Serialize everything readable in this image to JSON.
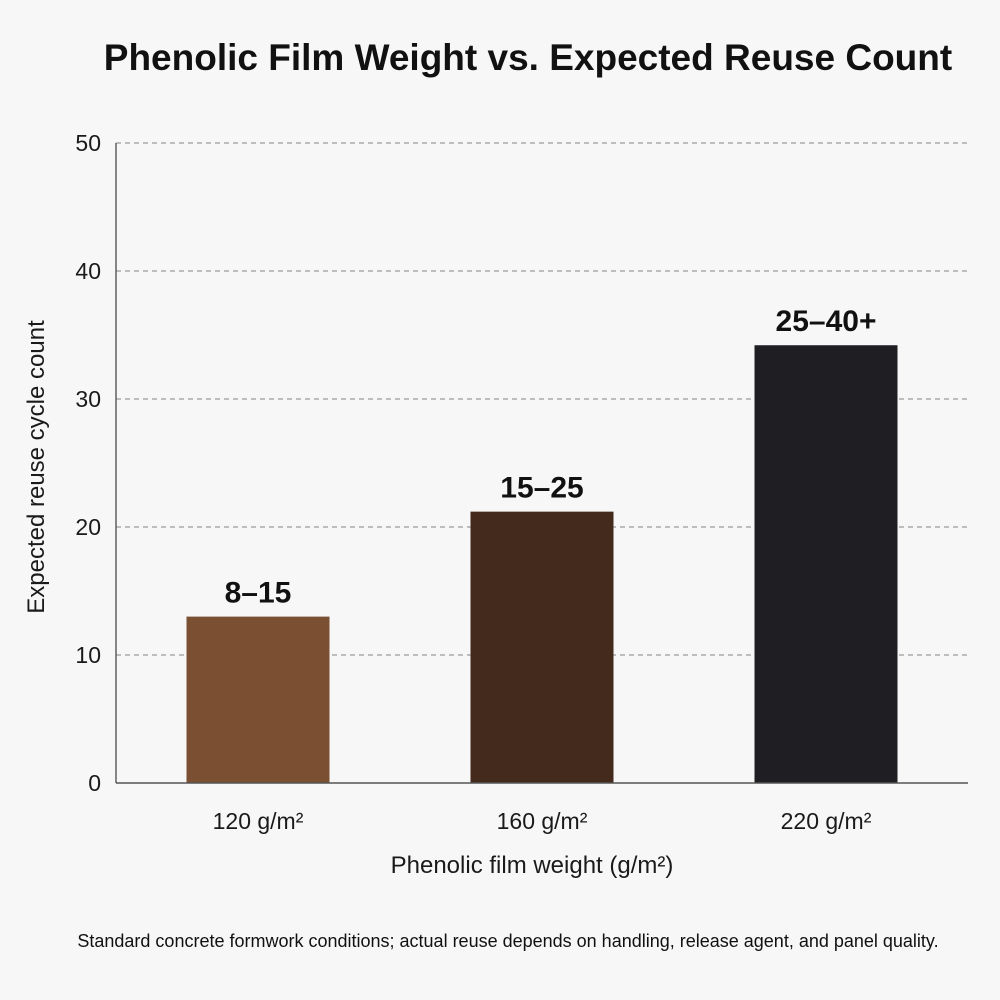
{
  "chart_data": {
    "type": "bar",
    "title": "Phenolic Film Weight vs. Expected Reuse Count",
    "xlabel": "Phenolic film weight (g/m²)",
    "ylabel": "Expected reuse cycle count",
    "categories": [
      "120 g/m²",
      "160 g/m²",
      "220 g/m²"
    ],
    "values": [
      13,
      21.2,
      34.2
    ],
    "data_labels": [
      "8–15",
      "15–25",
      "25–40+"
    ],
    "colors": [
      "#7b4f32",
      "#432a1c",
      "#1f1f23"
    ],
    "ylim": [
      0,
      50
    ],
    "yticks": [
      0,
      10,
      20,
      30,
      40,
      50
    ],
    "grid": true,
    "legend": "none"
  },
  "footnote": "Standard concrete formwork conditions; actual reuse depends on handling, release agent, and panel quality."
}
